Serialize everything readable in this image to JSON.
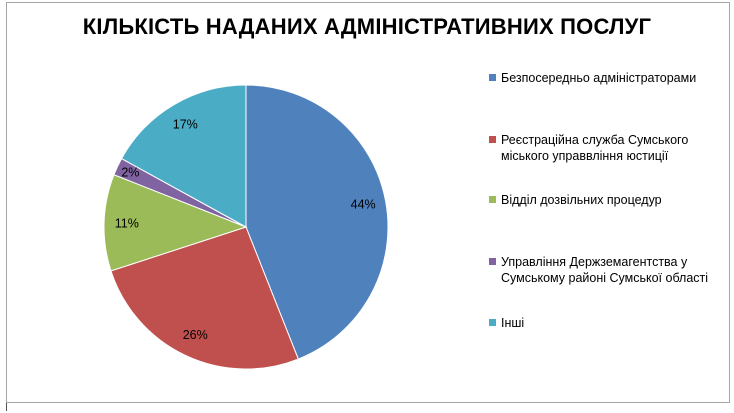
{
  "chart_data": {
    "type": "pie",
    "title": "КІЛЬКІСТЬ НАДАНИХ АДМІНІСТРАТИВНИХ ПОСЛУГ",
    "legend_position": "right",
    "slices": [
      {
        "label": "Безпосередньо адміністраторами",
        "value": 44,
        "value_label": "44%",
        "color": "#4F81BD"
      },
      {
        "label": "Реєстраційна служба Сумського міського управвління юстиції",
        "value": 26,
        "value_label": "26%",
        "color": "#C0504D"
      },
      {
        "label": "Відділ дозвільних процедур",
        "value": 11,
        "value_label": "11%",
        "color": "#9BBB59"
      },
      {
        "label": "Управління Держземагентства у Сумському районі Сумської області",
        "value": 2,
        "value_label": "2%",
        "color": "#8064A2"
      },
      {
        "label": "Інші",
        "value": 17,
        "value_label": "17%",
        "color": "#4BACC6"
      }
    ]
  }
}
